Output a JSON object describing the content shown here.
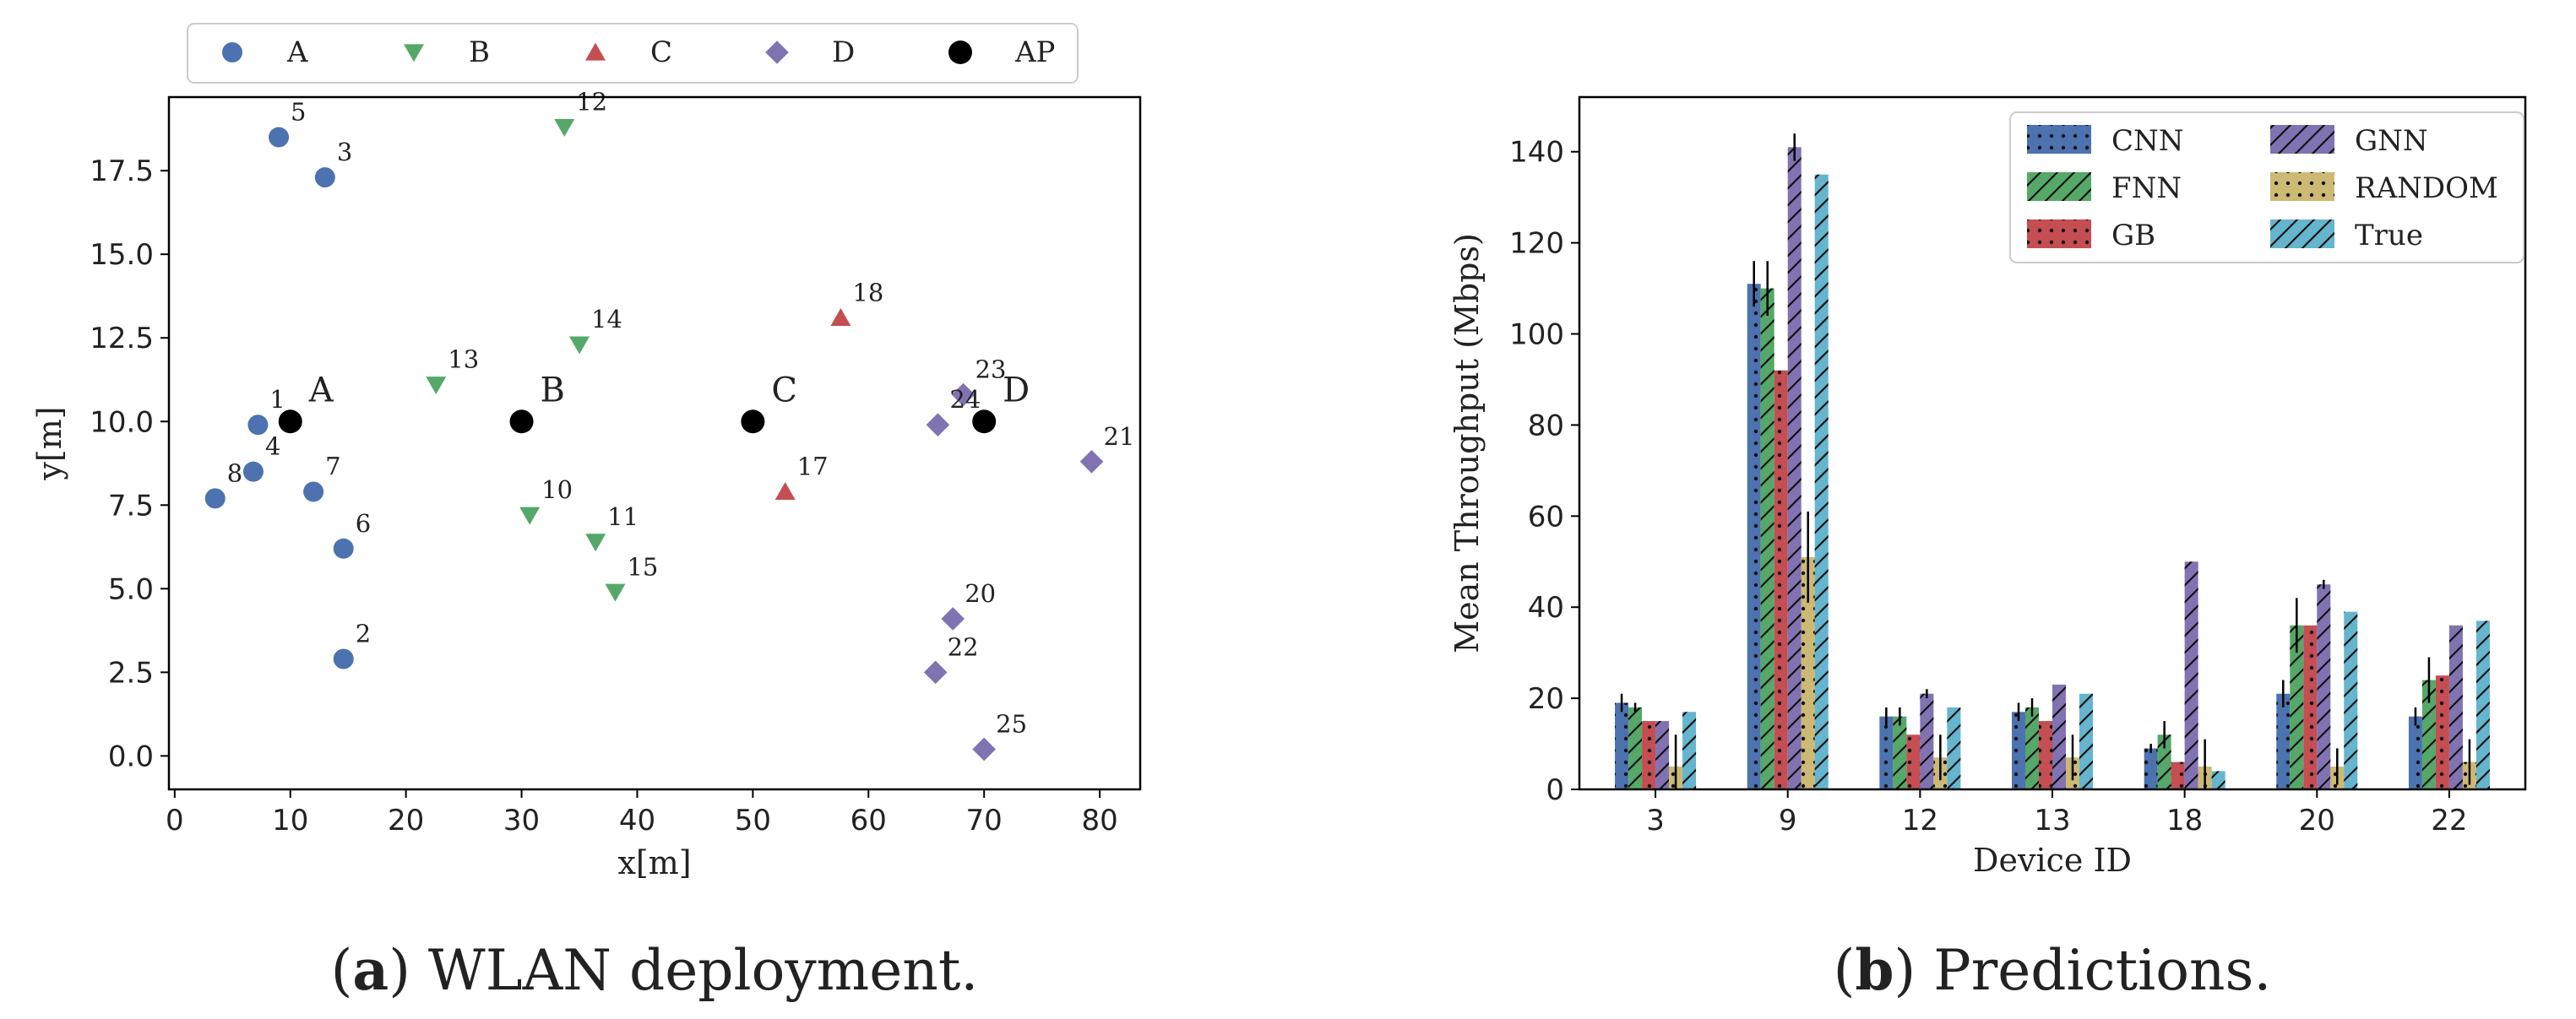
{
  "colors": {
    "A": "#4c72b0",
    "B": "#55a868",
    "C": "#c44e52",
    "D": "#8172b2",
    "AP": "#000000",
    "CNN": "#4c72b0",
    "FNN": "#55a868",
    "GB": "#c44e52",
    "GNN": "#8172b2",
    "RANDOM": "#ccb974",
    "True": "#64b5cd"
  },
  "captions": {
    "a": {
      "label": "a",
      "text": "WLAN deployment."
    },
    "b": {
      "label": "b",
      "text": "Predictions."
    }
  },
  "chart_data": [
    {
      "type": "scatter",
      "title": "",
      "xlabel": "x[m]",
      "ylabel": "y[m]",
      "xlim": [
        -0.5,
        83.5
      ],
      "ylim": [
        -1.0,
        19.7
      ],
      "xticks": [
        0,
        10,
        20,
        30,
        40,
        50,
        60,
        70,
        80
      ],
      "yticks": [
        0.0,
        2.5,
        5.0,
        7.5,
        10.0,
        12.5,
        15.0,
        17.5
      ],
      "ytick_labels": [
        "0.0",
        "2.5",
        "5.0",
        "7.5",
        "10.0",
        "12.5",
        "15.0",
        "17.5"
      ],
      "legend": [
        "A",
        "B",
        "C",
        "D",
        "AP"
      ],
      "legend_location": "top-center-outside",
      "series": [
        {
          "name": "A",
          "marker": "circle",
          "points": [
            {
              "id": "1",
              "x": 7.2,
              "y": 9.9
            },
            {
              "id": "2",
              "x": 14.6,
              "y": 2.9
            },
            {
              "id": "3",
              "x": 13.0,
              "y": 17.3
            },
            {
              "id": "4",
              "x": 6.8,
              "y": 8.5
            },
            {
              "id": "5",
              "x": 9.0,
              "y": 18.5
            },
            {
              "id": "6",
              "x": 14.6,
              "y": 6.2
            },
            {
              "id": "7",
              "x": 12.0,
              "y": 7.9
            },
            {
              "id": "8",
              "x": 3.5,
              "y": 7.7
            }
          ]
        },
        {
          "name": "B",
          "marker": "triangle-down",
          "points": [
            {
              "id": "10",
              "x": 30.7,
              "y": 7.2
            },
            {
              "id": "11",
              "x": 36.4,
              "y": 6.4
            },
            {
              "id": "12",
              "x": 33.7,
              "y": 18.8
            },
            {
              "id": "13",
              "x": 22.6,
              "y": 11.1
            },
            {
              "id": "14",
              "x": 35.0,
              "y": 12.3
            },
            {
              "id": "15",
              "x": 38.1,
              "y": 4.9
            }
          ]
        },
        {
          "name": "C",
          "marker": "triangle-up",
          "points": [
            {
              "id": "17",
              "x": 52.8,
              "y": 7.9
            },
            {
              "id": "18",
              "x": 57.6,
              "y": 13.1
            }
          ]
        },
        {
          "name": "D",
          "marker": "diamond",
          "points": [
            {
              "id": "20",
              "x": 67.3,
              "y": 4.1
            },
            {
              "id": "21",
              "x": 79.3,
              "y": 8.8
            },
            {
              "id": "22",
              "x": 65.8,
              "y": 2.5
            },
            {
              "id": "23",
              "x": 68.2,
              "y": 10.8
            },
            {
              "id": "24",
              "x": 66.0,
              "y": 9.9
            },
            {
              "id": "25",
              "x": 70.0,
              "y": 0.2
            }
          ]
        },
        {
          "name": "AP",
          "marker": "circle",
          "points": [
            {
              "id": "A",
              "x": 10,
              "y": 10
            },
            {
              "id": "B",
              "x": 30,
              "y": 10
            },
            {
              "id": "C",
              "x": 50,
              "y": 10
            },
            {
              "id": "D",
              "x": 70,
              "y": 10
            }
          ]
        }
      ]
    },
    {
      "type": "bar",
      "title": "",
      "xlabel": "Device ID",
      "ylabel": "Mean Throughput (Mbps)",
      "ylim": [
        0,
        152
      ],
      "yticks": [
        0,
        20,
        40,
        60,
        80,
        100,
        120,
        140
      ],
      "categories": [
        "3",
        "9",
        "12",
        "13",
        "18",
        "20",
        "22"
      ],
      "legend_location": "top-right",
      "series": [
        {
          "name": "CNN",
          "hatch": "dots",
          "values": [
            19,
            111,
            16,
            17,
            9,
            21,
            16
          ],
          "errors": [
            2,
            5,
            2,
            2,
            1,
            3,
            2
          ]
        },
        {
          "name": "FNN",
          "hatch": "slash",
          "values": [
            18,
            110,
            16,
            18,
            12,
            36,
            24
          ],
          "errors": [
            1,
            6,
            2,
            2,
            3,
            6,
            5
          ]
        },
        {
          "name": "GB",
          "hatch": "dots",
          "values": [
            15,
            92,
            12,
            15,
            6,
            36,
            25
          ],
          "errors": [
            0,
            0,
            0,
            0,
            0,
            0,
            0
          ]
        },
        {
          "name": "GNN",
          "hatch": "slash",
          "values": [
            15,
            141,
            21,
            23,
            50,
            45,
            36
          ],
          "errors": [
            0,
            3,
            1,
            0,
            0,
            1,
            0
          ]
        },
        {
          "name": "RANDOM",
          "hatch": "dots",
          "values": [
            5,
            51,
            7,
            7,
            5,
            5,
            6
          ],
          "errors": [
            7,
            10,
            5,
            5,
            6,
            4,
            5
          ]
        },
        {
          "name": "True",
          "hatch": "slash",
          "values": [
            17,
            135,
            18,
            21,
            4,
            39,
            37
          ],
          "errors": [
            0,
            0,
            0,
            0,
            0,
            0,
            0
          ]
        }
      ]
    }
  ]
}
